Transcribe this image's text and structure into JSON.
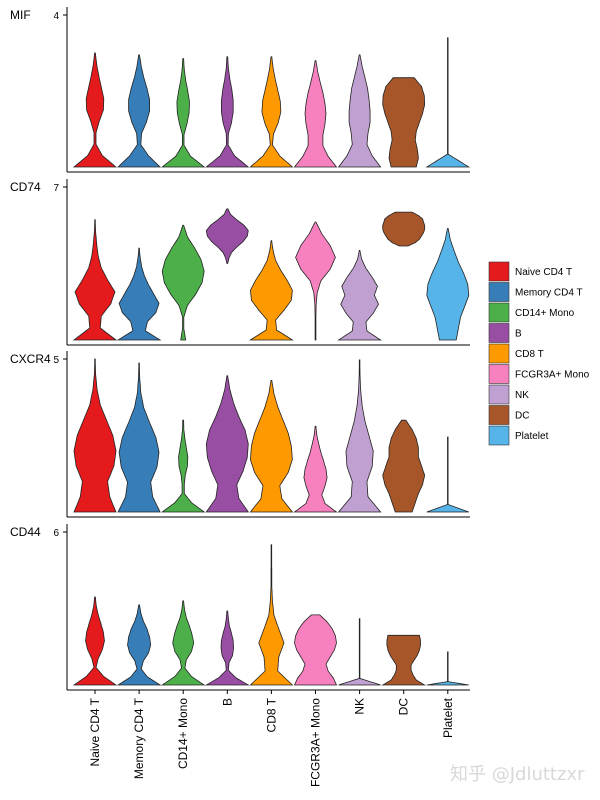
{
  "chart_data": {
    "type": "violin",
    "layout": "stacked",
    "categories": [
      "Naive CD4 T",
      "Memory CD4 T",
      "CD14+ Mono",
      "B",
      "CD8 T",
      "FCGR3A+ Mono",
      "NK",
      "DC",
      "Platelet"
    ],
    "colors": [
      "#E41A1C",
      "#377EB8",
      "#4DAF4A",
      "#984EA3",
      "#FF9900",
      "#F781BF",
      "#C0A0D0",
      "#A65628",
      "#56B4E9"
    ],
    "legend": {
      "position": "right",
      "entries": [
        "Naive CD4 T",
        "Memory CD4 T",
        "CD14+ Mono",
        "B",
        "CD8 T",
        "FCGR3A+ Mono",
        "NK",
        "DC",
        "Platelet"
      ]
    },
    "panels": [
      {
        "gene": "MIF",
        "ymax": 4,
        "tick": "4",
        "violins": [
          {
            "min": 0,
            "max": 3.0,
            "profile": [
              1,
              0.35,
              0.05,
              0.05,
              0.2,
              0.4,
              0.42,
              0.3,
              0.18,
              0.08,
              0.02
            ]
          },
          {
            "min": 0,
            "max": 2.95,
            "profile": [
              1,
              0.45,
              0.08,
              0.12,
              0.35,
              0.5,
              0.5,
              0.38,
              0.22,
              0.1,
              0.02
            ]
          },
          {
            "min": 0,
            "max": 2.85,
            "profile": [
              1,
              0.35,
              0.04,
              0.04,
              0.18,
              0.28,
              0.3,
              0.22,
              0.12,
              0.05,
              0.02
            ]
          },
          {
            "min": 0,
            "max": 2.9,
            "profile": [
              1,
              0.35,
              0.04,
              0.05,
              0.2,
              0.28,
              0.28,
              0.22,
              0.12,
              0.05,
              0.02
            ]
          },
          {
            "min": 0,
            "max": 2.9,
            "profile": [
              1,
              0.4,
              0.05,
              0.1,
              0.32,
              0.45,
              0.42,
              0.3,
              0.18,
              0.08,
              0.02
            ]
          },
          {
            "min": 0,
            "max": 2.8,
            "profile": [
              1,
              0.6,
              0.35,
              0.35,
              0.45,
              0.5,
              0.45,
              0.35,
              0.22,
              0.1,
              0.02
            ]
          },
          {
            "min": 0,
            "max": 2.95,
            "profile": [
              1,
              0.6,
              0.35,
              0.4,
              0.5,
              0.5,
              0.45,
              0.38,
              0.25,
              0.12,
              0.02
            ]
          },
          {
            "min": 0,
            "max": 2.35,
            "profile": [
              0.6,
              0.7,
              0.65,
              0.55,
              0.6,
              0.75,
              0.9,
              1,
              0.98,
              0.85,
              0.5
            ]
          },
          {
            "min": 0,
            "max": 3.4,
            "profile": [
              1,
              0.01,
              0.01,
              0.01,
              0.01,
              0.01,
              0.01,
              0.01,
              0.01,
              0.01,
              0.01
            ]
          }
        ]
      },
      {
        "gene": "CD74",
        "ymax": 7,
        "tick": "7",
        "violins": [
          {
            "min": 0,
            "max": 5.5,
            "profile": [
              1,
              0.25,
              0.3,
              0.75,
              0.95,
              0.6,
              0.3,
              0.15,
              0.08,
              0.03,
              0.01
            ]
          },
          {
            "min": 0,
            "max": 4.2,
            "profile": [
              1,
              0.3,
              0.4,
              0.8,
              0.95,
              0.7,
              0.45,
              0.25,
              0.12,
              0.05,
              0.01
            ]
          },
          {
            "min": 0,
            "max": 5.25,
            "profile": [
              0.12,
              0.03,
              0.03,
              0.2,
              0.6,
              0.9,
              1,
              0.85,
              0.55,
              0.2,
              0.02
            ]
          },
          {
            "min": 3.5,
            "max": 6.0,
            "profile": [
              0.02,
              0.08,
              0.2,
              0.45,
              0.75,
              0.95,
              1,
              0.8,
              0.45,
              0.15,
              0.03
            ]
          },
          {
            "min": 0,
            "max": 4.55,
            "profile": [
              1,
              0.25,
              0.2,
              0.6,
              0.95,
              1,
              0.75,
              0.45,
              0.2,
              0.08,
              0.01
            ]
          },
          {
            "min": 0,
            "max": 5.4,
            "profile": [
              0.02,
              0.02,
              0.02,
              0.03,
              0.08,
              0.25,
              0.7,
              0.95,
              0.7,
              0.3,
              0.02
            ]
          },
          {
            "min": 0,
            "max": 4.1,
            "profile": [
              1,
              0.35,
              0.3,
              0.65,
              0.9,
              0.7,
              0.85,
              0.6,
              0.3,
              0.1,
              0.01
            ]
          },
          {
            "min": 4.3,
            "max": 5.85,
            "profile": [
              0.2,
              0.55,
              0.75,
              0.85,
              0.95,
              1,
              1,
              0.95,
              0.9,
              0.7,
              0.4
            ]
          },
          {
            "min": 0,
            "max": 5.1,
            "profile": [
              0.4,
              0.5,
              0.6,
              0.8,
              1,
              0.95,
              0.75,
              0.5,
              0.3,
              0.12,
              0.02
            ]
          }
        ]
      },
      {
        "gene": "CXCR4",
        "ymax": 5,
        "tick": "5",
        "violins": [
          {
            "min": 0,
            "max": 5.0,
            "profile": [
              1,
              0.7,
              0.6,
              0.9,
              1,
              0.85,
              0.55,
              0.25,
              0.1,
              0.03,
              0.01
            ]
          },
          {
            "min": 0,
            "max": 4.87,
            "profile": [
              1,
              0.65,
              0.55,
              0.85,
              0.95,
              0.8,
              0.5,
              0.22,
              0.08,
              0.03,
              0.01
            ]
          },
          {
            "min": 0,
            "max": 3.0,
            "profile": [
              1,
              0.4,
              0.05,
              0.05,
              0.1,
              0.2,
              0.22,
              0.15,
              0.08,
              0.03,
              0.02
            ]
          },
          {
            "min": 0,
            "max": 4.45,
            "profile": [
              1,
              0.55,
              0.45,
              0.75,
              0.95,
              1,
              0.85,
              0.55,
              0.3,
              0.12,
              0.02
            ]
          },
          {
            "min": 0,
            "max": 4.3,
            "profile": [
              1,
              0.5,
              0.4,
              0.8,
              1,
              0.95,
              0.8,
              0.55,
              0.3,
              0.12,
              0.02
            ]
          },
          {
            "min": 0,
            "max": 2.8,
            "profile": [
              1,
              0.45,
              0.3,
              0.45,
              0.55,
              0.5,
              0.38,
              0.25,
              0.15,
              0.06,
              0.02
            ]
          },
          {
            "min": 0,
            "max": 4.97,
            "profile": [
              1,
              0.4,
              0.35,
              0.6,
              0.65,
              0.45,
              0.25,
              0.12,
              0.05,
              0.02,
              0.01
            ]
          },
          {
            "min": 0,
            "max": 3.0,
            "profile": [
              0.4,
              0.55,
              0.7,
              0.9,
              1,
              0.85,
              0.7,
              0.7,
              0.6,
              0.4,
              0.1
            ]
          },
          {
            "min": 0,
            "max": 2.45,
            "profile": [
              1,
              0.01,
              0.01,
              0.01,
              0.01,
              0.01,
              0.01,
              0.01,
              0.01,
              0.01,
              0.01
            ]
          }
        ]
      },
      {
        "gene": "CD44",
        "ymax": 6,
        "tick": "6",
        "violins": [
          {
            "min": 0,
            "max": 3.45,
            "profile": [
              1,
              0.4,
              0.05,
              0.15,
              0.35,
              0.45,
              0.4,
              0.28,
              0.15,
              0.06,
              0.02
            ]
          },
          {
            "min": 0,
            "max": 3.14,
            "profile": [
              1,
              0.4,
              0.1,
              0.2,
              0.45,
              0.55,
              0.5,
              0.38,
              0.2,
              0.08,
              0.02
            ]
          },
          {
            "min": 0,
            "max": 3.3,
            "profile": [
              1,
              0.4,
              0.08,
              0.15,
              0.4,
              0.5,
              0.42,
              0.3,
              0.15,
              0.06,
              0.02
            ]
          },
          {
            "min": 0,
            "max": 2.9,
            "profile": [
              1,
              0.4,
              0.05,
              0.08,
              0.25,
              0.3,
              0.28,
              0.2,
              0.1,
              0.05,
              0.02
            ]
          },
          {
            "min": 0,
            "max": 5.5,
            "profile": [
              1,
              0.3,
              0.35,
              0.6,
              0.35,
              0.12,
              0.05,
              0.02,
              0.02,
              0.01,
              0.01
            ]
          },
          {
            "min": 0,
            "max": 2.75,
            "profile": [
              1,
              0.85,
              0.6,
              0.5,
              0.7,
              0.9,
              1,
              0.95,
              0.8,
              0.55,
              0.2
            ]
          },
          {
            "min": 0,
            "max": 2.6,
            "profile": [
              1,
              0.01,
              0.01,
              0.01,
              0.01,
              0.01,
              0.01,
              0.01,
              0.01,
              0.01,
              0.01
            ]
          },
          {
            "min": 0,
            "max": 1.95,
            "profile": [
              1,
              0.6,
              0.45,
              0.35,
              0.35,
              0.5,
              0.65,
              0.75,
              0.8,
              0.8,
              0.75
            ]
          },
          {
            "min": 0,
            "max": 1.3,
            "profile": [
              1,
              0.01,
              0.01,
              0.01,
              0.01,
              0.01,
              0.01,
              0.01,
              0.01,
              0.01,
              0.01
            ]
          }
        ]
      }
    ]
  },
  "watermark": "知乎 @Jdluttzxr"
}
